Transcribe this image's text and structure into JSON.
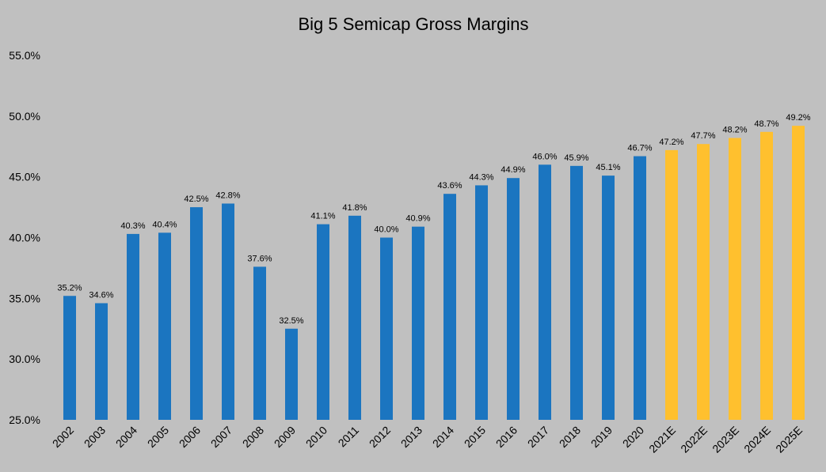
{
  "colors": {
    "background": "#C0C0C0",
    "actual_bar": "#1B75C0",
    "estimate_bar": "#FFC02E",
    "text": "#000000"
  },
  "chart_data": {
    "type": "bar",
    "title": "Big 5 Semicap Gross Margins",
    "xlabel": "",
    "ylabel": "",
    "ylim": [
      25.0,
      55.0
    ],
    "y_ticks": [
      "25.0%",
      "30.0%",
      "35.0%",
      "40.0%",
      "45.0%",
      "50.0%",
      "55.0%"
    ],
    "y_tick_values": [
      25,
      30,
      35,
      40,
      45,
      50,
      55
    ],
    "grid": false,
    "legend": "none",
    "value_suffix": "%",
    "categories": [
      "2002",
      "2003",
      "2004",
      "2005",
      "2006",
      "2007",
      "2008",
      "2009",
      "2010",
      "2011",
      "2012",
      "2013",
      "2014",
      "2015",
      "2016",
      "2017",
      "2018",
      "2019",
      "2020",
      "2021E",
      "2022E",
      "2023E",
      "2024E",
      "2025E"
    ],
    "values": [
      35.2,
      34.6,
      40.3,
      40.4,
      42.5,
      42.8,
      37.6,
      32.5,
      41.1,
      41.8,
      40.0,
      40.9,
      43.6,
      44.3,
      44.9,
      46.0,
      45.9,
      45.1,
      46.7,
      47.2,
      47.7,
      48.2,
      48.7,
      49.2
    ],
    "data_labels": [
      "35.2%",
      "34.6%",
      "40.3%",
      "40.4%",
      "42.5%",
      "42.8%",
      "37.6%",
      "32.5%",
      "41.1%",
      "41.8%",
      "40.0%",
      "40.9%",
      "43.6%",
      "44.3%",
      "44.9%",
      "46.0%",
      "45.9%",
      "45.1%",
      "46.7%",
      "47.2%",
      "47.7%",
      "48.2%",
      "48.7%",
      "49.2%"
    ],
    "estimate": [
      false,
      false,
      false,
      false,
      false,
      false,
      false,
      false,
      false,
      false,
      false,
      false,
      false,
      false,
      false,
      false,
      false,
      false,
      false,
      true,
      true,
      true,
      true,
      true
    ]
  }
}
